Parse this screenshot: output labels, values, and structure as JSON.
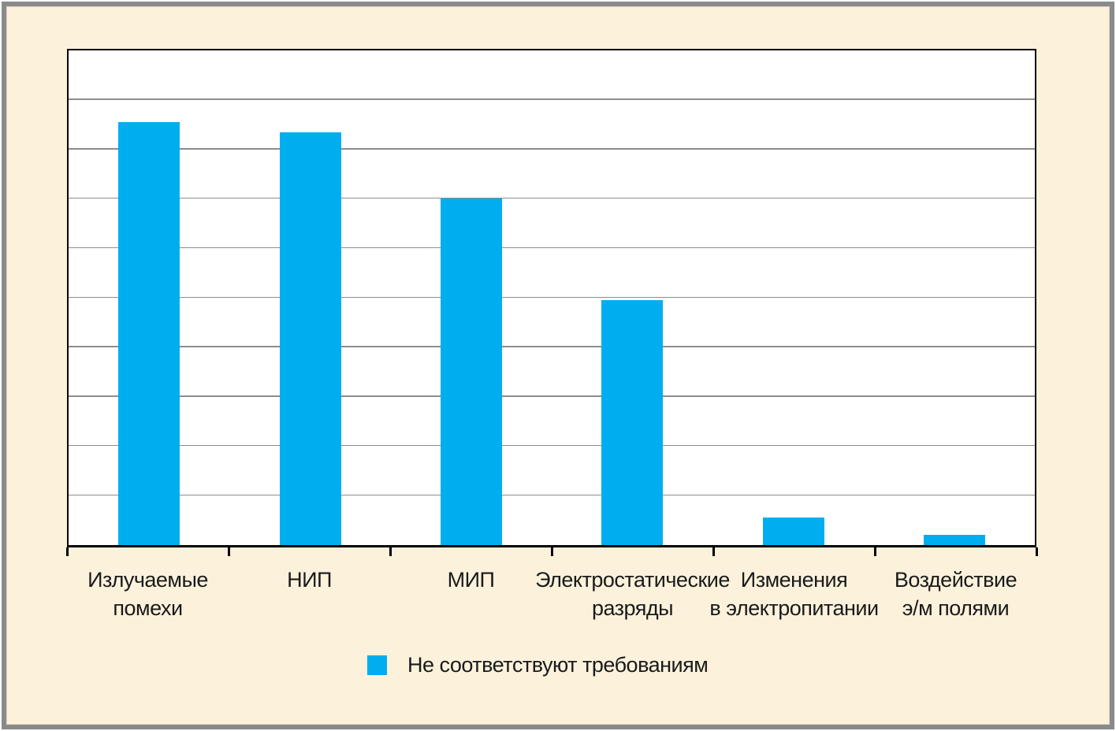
{
  "colors": {
    "background": "#fcf2dc",
    "frame_border": "#8a8a8a",
    "plot_background": "#ffffff",
    "axis": "#000000",
    "gridline": "#8c8c8c",
    "bar": "#00aeef",
    "text": "#1a1a1a"
  },
  "chart_data": {
    "type": "bar",
    "categories": [
      "Излучаемые\nпомехи",
      "НИП",
      "МИП",
      "Электростатические\nразряды",
      "Изменения\nв электропитании",
      "Воздействие\nэ/м полями"
    ],
    "values": [
      85.5,
      83.5,
      70,
      49.5,
      5.5,
      2
    ],
    "series": [
      {
        "name": "Не соответствуют требованиям",
        "values": [
          85.5,
          83.5,
          70,
          49.5,
          5.5,
          2
        ]
      }
    ],
    "title": "",
    "xlabel": "",
    "ylabel": "",
    "ylim": [
      0,
      100
    ],
    "gridline_step": 10,
    "y_tick_labels": [],
    "grid": "horizontal",
    "bar_color": "#00aeef",
    "legend_position": "bottom",
    "legend": [
      {
        "label": "Не соответствуют требованиям",
        "color": "#00aeef"
      }
    ]
  }
}
